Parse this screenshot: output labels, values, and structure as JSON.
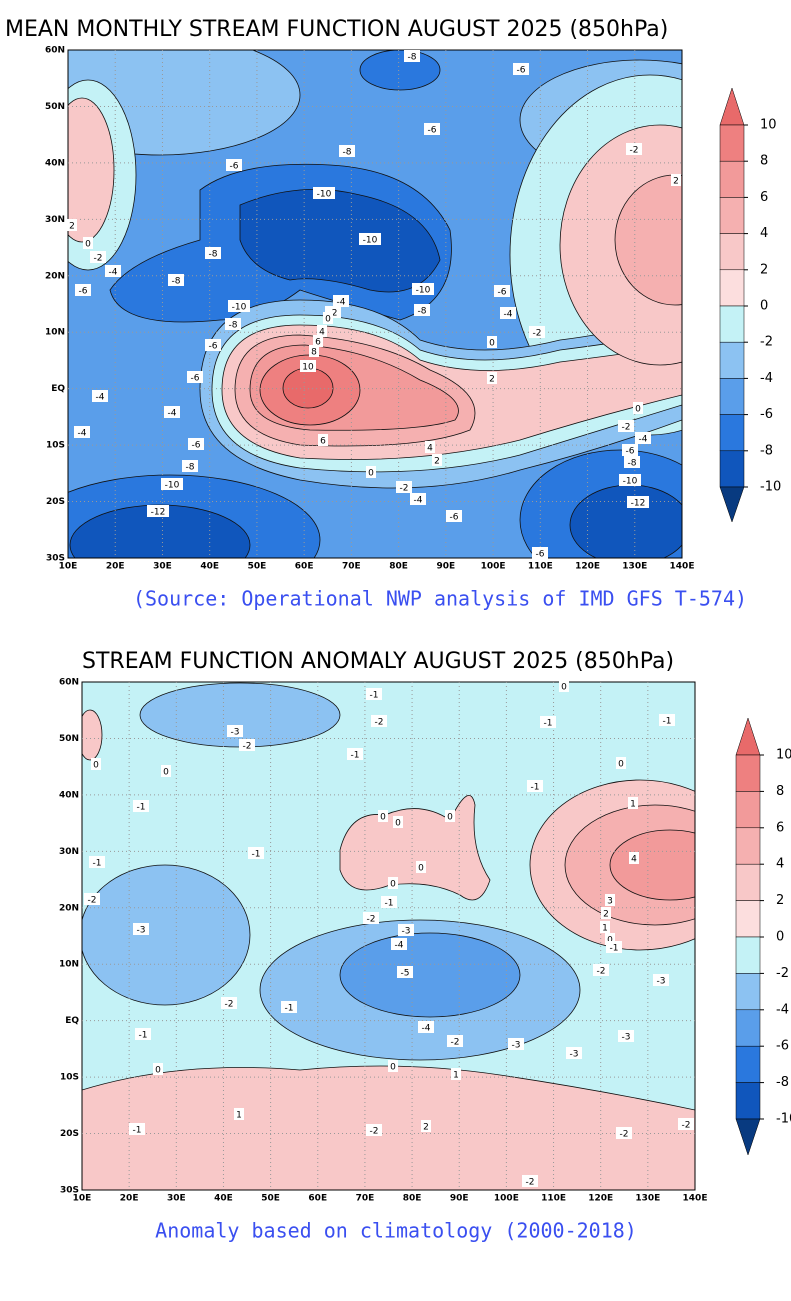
{
  "panels": [
    {
      "title": "MEAN MONTHLY STREAM FUNCTION AUGUST 2025 (850hPa)",
      "x_ticks": [
        "10E",
        "20E",
        "30E",
        "40E",
        "50E",
        "60E",
        "70E",
        "80E",
        "90E",
        "100E",
        "110E",
        "120E",
        "130E",
        "140E"
      ],
      "y_ticks": [
        "60N",
        "50N",
        "40N",
        "30N",
        "20N",
        "10N",
        "EQ",
        "10S",
        "20S",
        "30S"
      ],
      "colorbar_ticks": [
        10,
        8,
        6,
        4,
        2,
        0,
        -2,
        -4,
        -6,
        -8,
        -10
      ],
      "colorbar_colors": [
        "#e86a6a",
        "#ee8080",
        "#f29a9a",
        "#f5b0b0",
        "#f8c8c8",
        "#fcdede",
        "#c4f2f6",
        "#8cc2f2",
        "#5a9eea",
        "#2a78de",
        "#1056bc",
        "#083a80"
      ],
      "contour_labels": [
        -8,
        -6,
        -6,
        -8,
        -6,
        -2,
        2,
        -10,
        -10,
        2,
        0,
        -2,
        -4,
        -8,
        -8,
        -6,
        -10,
        -6,
        -4,
        -2,
        0,
        -10,
        -8,
        -4,
        -8,
        -2,
        4,
        6,
        -6,
        0,
        8,
        10,
        -6,
        2,
        -4,
        -4,
        0,
        -2,
        -4,
        -4,
        6,
        -6,
        4,
        -6,
        2,
        -8,
        -8,
        0,
        -10,
        -10,
        -2,
        -4,
        -12,
        -12,
        -6,
        -6
      ],
      "caption": "(Source: Operational NWP analysis of IMD GFS T-574)"
    },
    {
      "title": "STREAM FUNCTION ANOMALY AUGUST 2025 (850hPa)",
      "x_ticks": [
        "10E",
        "20E",
        "30E",
        "40E",
        "50E",
        "60E",
        "70E",
        "80E",
        "90E",
        "100E",
        "110E",
        "120E",
        "130E",
        "140E"
      ],
      "y_ticks": [
        "60N",
        "50N",
        "40N",
        "30N",
        "20N",
        "10N",
        "EQ",
        "10S",
        "20S",
        "30S"
      ],
      "colorbar_ticks": [
        10,
        8,
        6,
        4,
        2,
        0,
        -2,
        -4,
        -6,
        -8,
        -10
      ],
      "colorbar_colors": [
        "#e86a6a",
        "#ee8080",
        "#f29a9a",
        "#f5b0b0",
        "#f8c8c8",
        "#fcdede",
        "#c4f2f6",
        "#8cc2f2",
        "#5a9eea",
        "#2a78de",
        "#1056bc",
        "#083a80"
      ],
      "contour_labels": [
        -1,
        0,
        -2,
        -1,
        -1,
        -3,
        -2,
        -1,
        0,
        0,
        0,
        -1,
        -1,
        0,
        0,
        0,
        1,
        -1,
        -1,
        0,
        4,
        0,
        -1,
        3,
        -2,
        2,
        -2,
        -3,
        -3,
        1,
        0,
        -4,
        -1,
        -2,
        -5,
        -3,
        -2,
        -1,
        -4,
        -3,
        -1,
        -2,
        -3,
        -3,
        0,
        1,
        0,
        1,
        -2,
        -1,
        -2,
        2,
        -2,
        -2
      ],
      "caption": "Anomaly based on climatology (2000-2018)"
    }
  ]
}
